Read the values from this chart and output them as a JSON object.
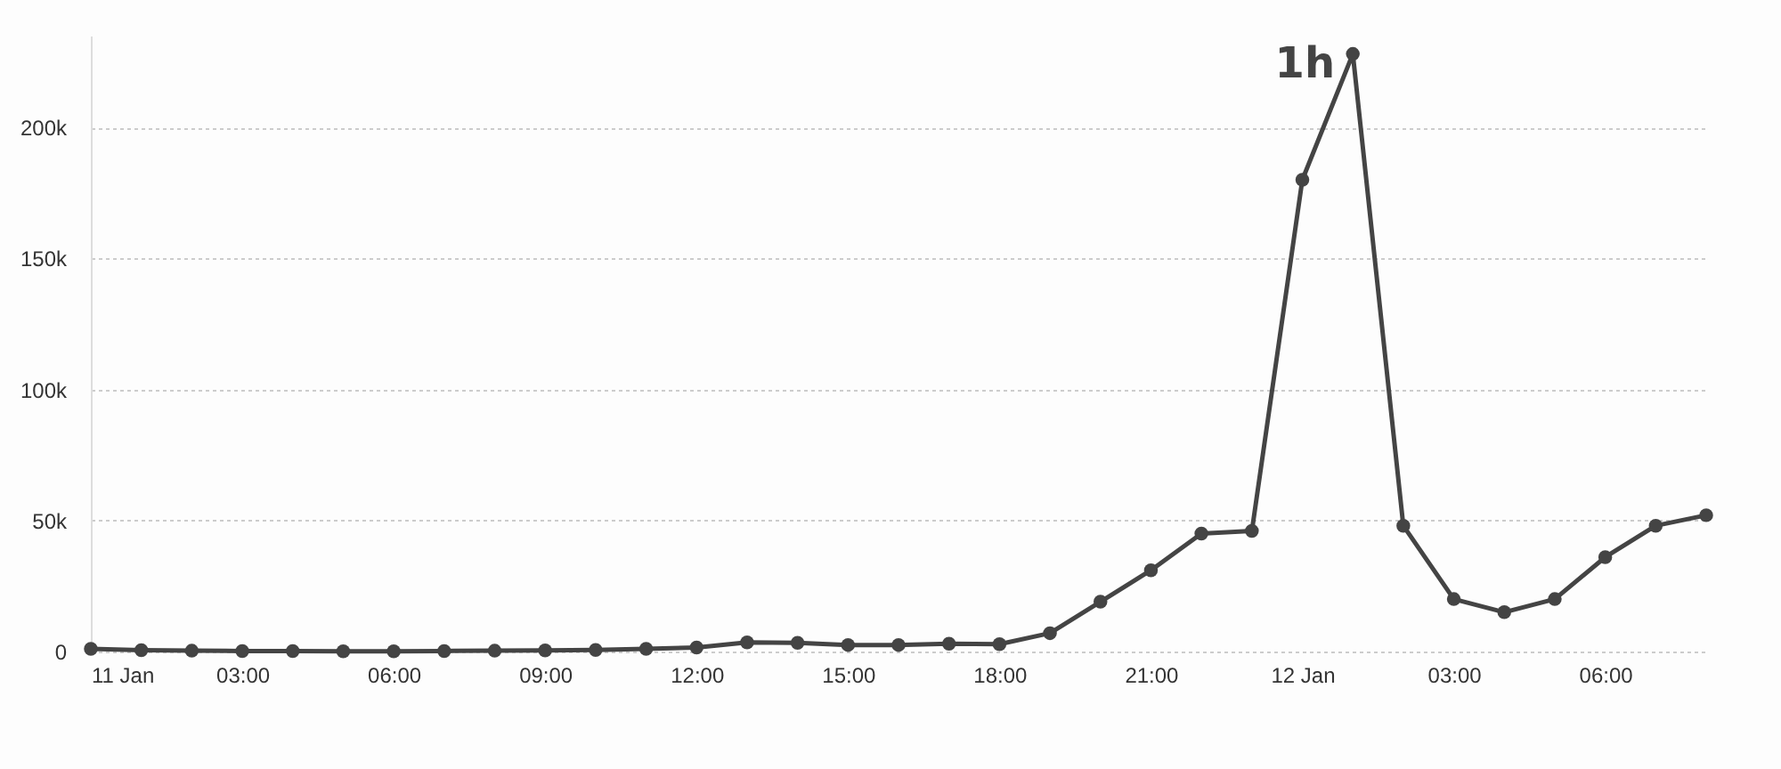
{
  "chart_data": {
    "type": "line",
    "x": [
      "--01-11T00:00",
      "--01-11T01:00",
      "--01-11T02:00",
      "--01-11T03:00",
      "--01-11T04:00",
      "--01-11T05:00",
      "--01-11T06:00",
      "--01-11T07:00",
      "--01-11T08:00",
      "--01-11T09:00",
      "--01-11T10:00",
      "--01-11T11:00",
      "--01-11T12:00",
      "--01-11T13:00",
      "--01-11T14:00",
      "--01-11T15:00",
      "--01-11T16:00",
      "--01-11T17:00",
      "--01-11T18:00",
      "--01-11T19:00",
      "--01-11T20:00",
      "--01-11T21:00",
      "--01-11T22:00",
      "--01-11T23:00",
      "--01-12T00:00",
      "--01-12T01:00",
      "--01-12T02:00",
      "--01-12T03:00",
      "--01-12T04:00",
      "--01-12T05:00",
      "--01-12T06:00",
      "--01-12T07:00",
      "--01-12T08:00"
    ],
    "series": [
      {
        "color": "#444444",
        "values": [
          1000,
          500,
          300,
          200,
          200,
          100,
          100,
          200,
          300,
          400,
          600,
          1000,
          1500,
          3500,
          3300,
          2500,
          2500,
          3000,
          2800,
          7000,
          19000,
          31000,
          45000,
          46000,
          180000,
          228000,
          48000,
          20000,
          15000,
          20000,
          36000,
          48000,
          52000
        ]
      }
    ],
    "xlim": [
      "--01-11T00:00",
      "--01-12T08:00"
    ],
    "xticks": [
      {
        "value": "--01-11T00:00",
        "label": "11 Jan"
      },
      {
        "value": "--01-11T03:00",
        "label": "03:00"
      },
      {
        "value": "--01-11T06:00",
        "label": "06:00"
      },
      {
        "value": "--01-11T09:00",
        "label": "09:00"
      },
      {
        "value": "--01-11T12:00",
        "label": "12:00"
      },
      {
        "value": "--01-11T15:00",
        "label": "15:00"
      },
      {
        "value": "--01-11T18:00",
        "label": "18:00"
      },
      {
        "value": "--01-11T21:00",
        "label": "21:00"
      },
      {
        "value": "--01-12T00:00",
        "label": "12 Jan"
      },
      {
        "value": "--01-12T03:00",
        "label": "03:00"
      },
      {
        "value": "--01-12T06:00",
        "label": "06:00"
      }
    ],
    "ylim": [
      0,
      235000
    ],
    "yticks": [
      {
        "value": 0,
        "label": "0"
      },
      {
        "value": 50000,
        "label": "50k"
      },
      {
        "value": 100000,
        "label": "100k"
      },
      {
        "value": 150000,
        "label": "150k"
      },
      {
        "value": 200000,
        "label": "200k"
      }
    ],
    "grid": "y",
    "marker": "circle",
    "line_style": "solid",
    "annotations": [
      {
        "text": "1h",
        "x": "--01-12T01:00",
        "y": 228000
      }
    ]
  }
}
